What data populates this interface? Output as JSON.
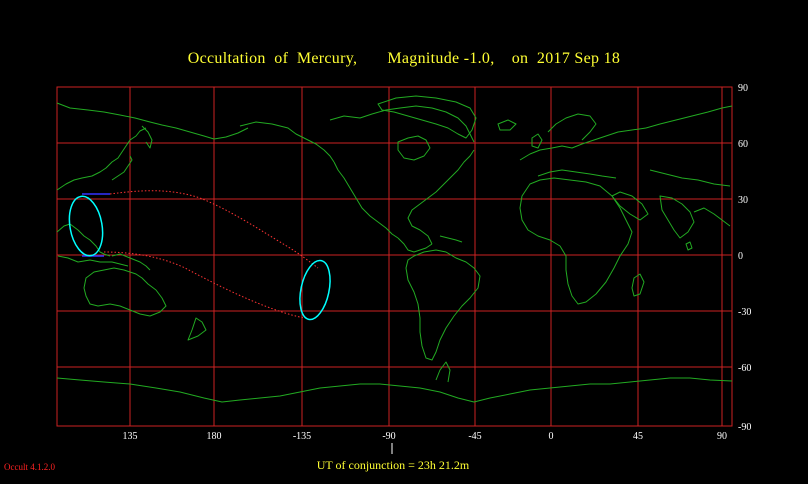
{
  "title": "Occultation  of  Mercury,       Magnitude -1.0,    on  2017 Sep 18",
  "ut_label": "UT of conjunction = 23h 21.2m",
  "version": "Occult 4.1.2.0",
  "map": {
    "lon_labels": [
      "135",
      "180",
      "-135",
      "-90",
      "-45",
      "0",
      "45",
      "90"
    ],
    "lat_labels": [
      "90",
      "60",
      "30",
      "0",
      "-30",
      "-60",
      "-90"
    ],
    "colors": {
      "background": "#000000",
      "grid": "#cc2222",
      "coastline": "#22aa22",
      "visibility_curves": "#00ffff",
      "path_limits": "#ff3333",
      "terminator_segment": "#3333ff",
      "title": "#ffff33"
    }
  }
}
